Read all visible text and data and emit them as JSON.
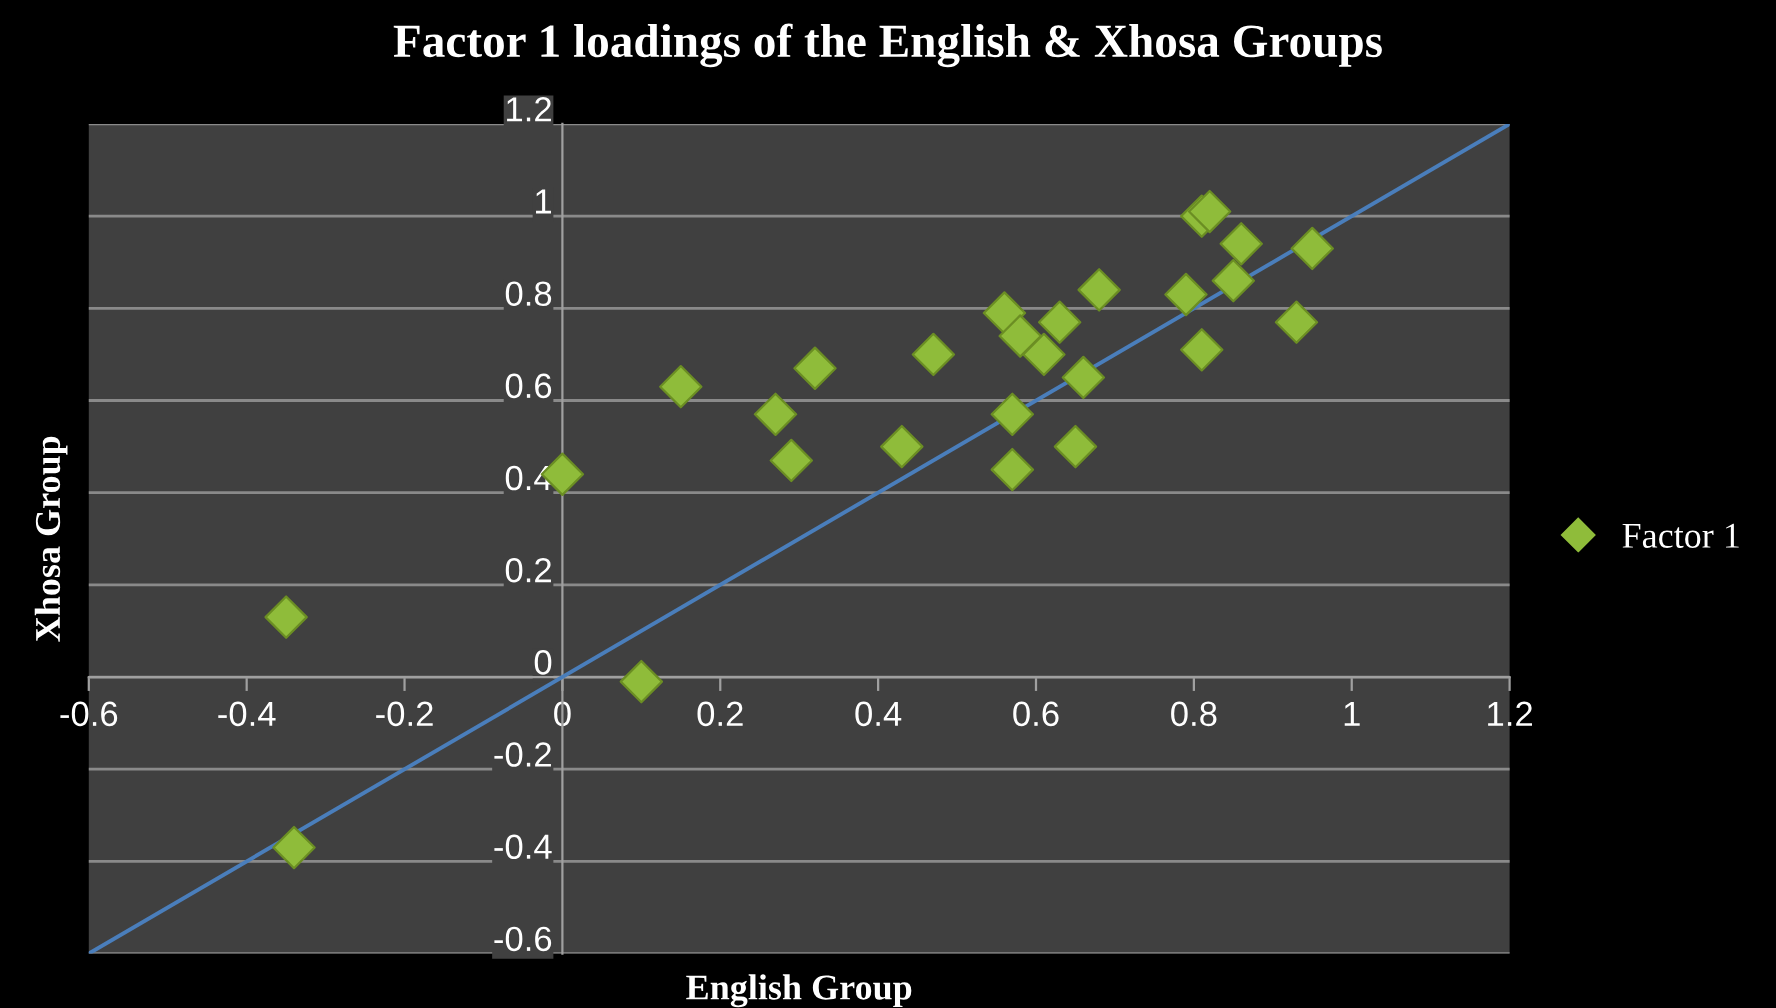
{
  "chart_data": {
    "type": "scatter",
    "title": "Factor 1 loadings of the English & Xhosa Groups",
    "xlabel": "English Group",
    "ylabel": "Xhosa Group",
    "xlim": [
      -0.6,
      1.2
    ],
    "ylim": [
      -0.6,
      1.2
    ],
    "xticks": [
      -0.6,
      -0.4,
      -0.2,
      0,
      0.2,
      0.4,
      0.6,
      0.8,
      1,
      1.2
    ],
    "yticks": [
      -0.6,
      -0.4,
      -0.2,
      0,
      0.2,
      0.4,
      0.6,
      0.8,
      1,
      1.2
    ],
    "grid": "y",
    "legend": "right",
    "marker": "diamond",
    "series": [
      {
        "name": "Factor 1",
        "type": "scatter",
        "color": "#8fbc3a",
        "x": [
          -0.35,
          -0.34,
          0,
          0.1,
          0.15,
          0.27,
          0.29,
          0.32,
          0.43,
          0.47,
          0.56,
          0.58,
          0.61,
          0.63,
          0.68,
          0.66,
          0.57,
          0.57,
          0.65,
          0.81,
          0.82,
          0.86,
          0.79,
          0.85,
          0.81,
          0.95,
          0.93
        ],
        "values": [
          0.13,
          -0.37,
          0.44,
          -0.01,
          0.63,
          0.57,
          0.47,
          0.67,
          0.5,
          0.7,
          0.79,
          0.74,
          0.7,
          0.77,
          0.84,
          0.65,
          0.57,
          0.45,
          0.5,
          1.0,
          1.01,
          0.94,
          0.83,
          0.86,
          0.71,
          0.93,
          0.77
        ]
      },
      {
        "type": "line",
        "color": "#4a7ebb",
        "x": [
          -0.6,
          1.2
        ],
        "values": [
          -0.6,
          1.2
        ],
        "line_style": "solid",
        "marker": "none"
      }
    ]
  }
}
